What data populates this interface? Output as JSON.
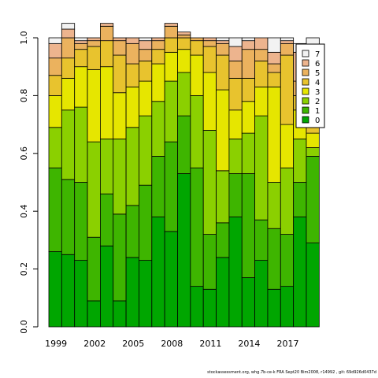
{
  "chart_data": {
    "type": "bar",
    "stacked": true,
    "normalized": true,
    "title": "",
    "xlabel": "",
    "ylabel": "",
    "ylim": [
      0,
      1
    ],
    "yticks": [
      "0.0",
      "0.2",
      "0.4",
      "0.6",
      "0.8",
      "1.0"
    ],
    "years": [
      1999,
      2000,
      2001,
      2002,
      2003,
      2004,
      2005,
      2006,
      2007,
      2008,
      2009,
      2010,
      2011,
      2012,
      2013,
      2014,
      2015,
      2016,
      2017,
      2018,
      2019
    ],
    "xtick_labels": [
      "1999",
      "2002",
      "2005",
      "2008",
      "2011",
      "2014",
      "2017"
    ],
    "legend_position": "top-right",
    "series": [
      {
        "name": "0",
        "color": "#00a600",
        "values": [
          0.26,
          0.25,
          0.23,
          0.09,
          0.28,
          0.09,
          0.24,
          0.23,
          0.38,
          0.33,
          0.53,
          0.14,
          0.13,
          0.24,
          0.38,
          0.17,
          0.23,
          0.13,
          0.14,
          0.38,
          0.29
        ]
      },
      {
        "name": "1",
        "color": "#3eb500",
        "values": [
          0.29,
          0.26,
          0.27,
          0.22,
          0.18,
          0.3,
          0.18,
          0.26,
          0.21,
          0.31,
          0.2,
          0.41,
          0.19,
          0.12,
          0.15,
          0.36,
          0.14,
          0.21,
          0.18,
          0.12,
          0.3
        ]
      },
      {
        "name": "2",
        "color": "#8bd000",
        "values": [
          0.14,
          0.24,
          0.26,
          0.33,
          0.19,
          0.26,
          0.27,
          0.24,
          0.19,
          0.21,
          0.15,
          0.25,
          0.36,
          0.18,
          0.12,
          0.14,
          0.36,
          0.16,
          0.23,
          0.15,
          0.03
        ]
      },
      {
        "name": "3",
        "color": "#e6e600",
        "values": [
          0.11,
          0.11,
          0.14,
          0.25,
          0.25,
          0.16,
          0.14,
          0.12,
          0.13,
          0.1,
          0.08,
          0.14,
          0.2,
          0.28,
          0.1,
          0.11,
          0.1,
          0.33,
          0.15,
          0.1,
          0.05
        ]
      },
      {
        "name": "4",
        "color": "#e8c32e",
        "values": [
          0.07,
          0.07,
          0.06,
          0.08,
          0.09,
          0.13,
          0.08,
          0.07,
          0.05,
          0.05,
          0.04,
          0.05,
          0.09,
          0.12,
          0.11,
          0.08,
          0.09,
          0.05,
          0.24,
          0.05,
          0.1
        ]
      },
      {
        "name": "5",
        "color": "#ebb25e",
        "values": [
          0.06,
          0.07,
          0.02,
          0.02,
          0.05,
          0.05,
          0.07,
          0.04,
          0.03,
          0.04,
          0.01,
          0.01,
          0.02,
          0.04,
          0.06,
          0.1,
          0.04,
          0.03,
          0.04,
          0.05,
          0.1
        ]
      },
      {
        "name": "6",
        "color": "#edb48e",
        "values": [
          0.05,
          0.03,
          0.01,
          0.01,
          0.01,
          0.01,
          0.02,
          0.03,
          0.01,
          0.01,
          0.01,
          0.0,
          0.01,
          0.01,
          0.05,
          0.03,
          0.04,
          0.04,
          0.01,
          0.1,
          0.1
        ]
      },
      {
        "name": "7",
        "color": "#f2f2f2",
        "values": [
          0.02,
          0.02,
          0.01,
          0.0,
          0.0,
          0.0,
          0.0,
          0.01,
          0.0,
          0.0,
          0.0,
          0.0,
          0.0,
          0.01,
          0.03,
          0.01,
          0.0,
          0.05,
          0.01,
          0.03,
          0.03
        ]
      }
    ],
    "legend_order": [
      "7",
      "6",
      "5",
      "4",
      "3",
      "2",
      "1",
      "0"
    ]
  },
  "footer": {
    "text": "stockassessment.org, whg.7b-ce-k FRA Sept20 Bim2008, r14992 , git: 69d926d0437d"
  }
}
